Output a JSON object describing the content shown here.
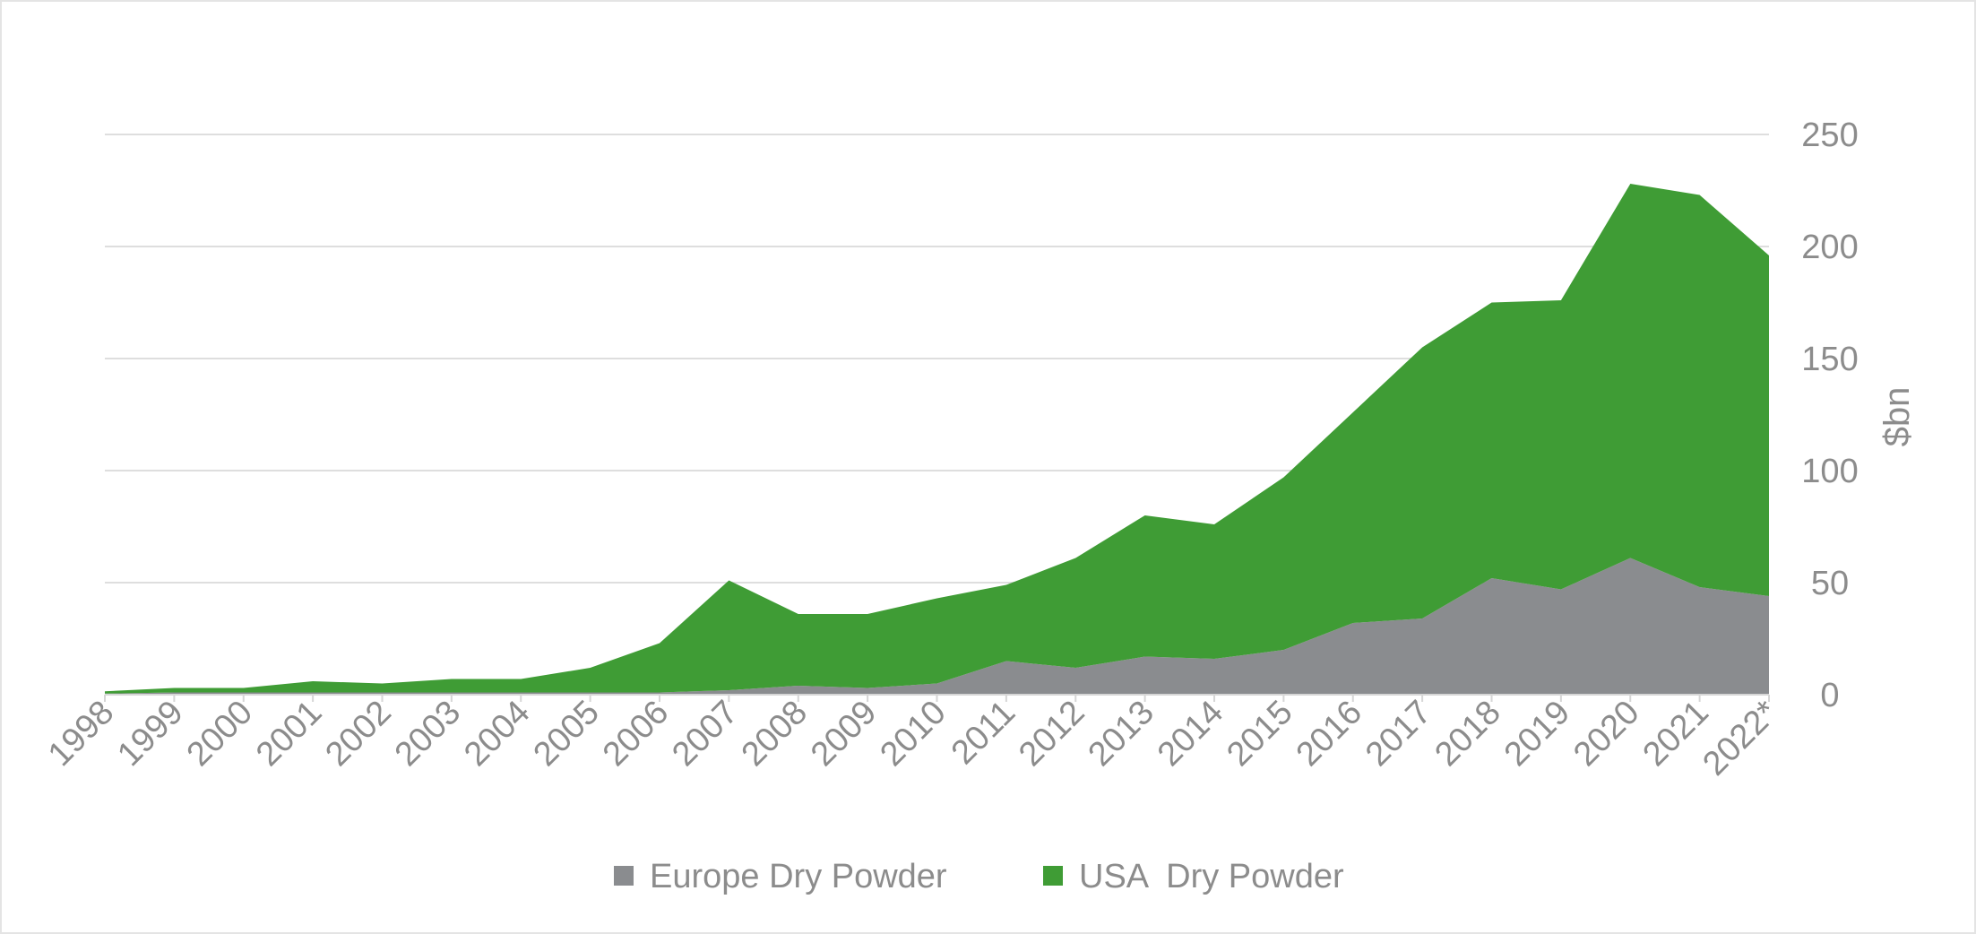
{
  "chart_data": {
    "type": "area",
    "stacked": true,
    "x": [
      "1998",
      "1999",
      "2000",
      "2001",
      "2002",
      "2003",
      "2004",
      "2005",
      "2006",
      "2007",
      "2008",
      "2009",
      "2010",
      "2011",
      "2012",
      "2013",
      "2014",
      "2015",
      "2016",
      "2017",
      "2018",
      "2019",
      "2020",
      "2021",
      "2022*"
    ],
    "series": [
      {
        "name": "Europe Dry Powder",
        "color": "#8a8c8f",
        "values": [
          0.5,
          1,
          1,
          1,
          1,
          1,
          1,
          1,
          1,
          2,
          4,
          3,
          5,
          15,
          12,
          17,
          16,
          20,
          32,
          34,
          52,
          47,
          61,
          48,
          44
        ]
      },
      {
        "name": "USA  Dry Powder",
        "color": "#3f9c35",
        "values": [
          1,
          2,
          2,
          5,
          4,
          6,
          6,
          11,
          22,
          49,
          32,
          33,
          38,
          34,
          49,
          63,
          60,
          77,
          94,
          121,
          123,
          129,
          167,
          175,
          152
        ]
      }
    ],
    "y_axis": {
      "label": "$bn",
      "position": "right",
      "min": 0,
      "max": 250,
      "ticks": [
        0,
        50,
        100,
        150,
        200,
        250
      ]
    },
    "grid": true,
    "legend_position": "bottom-center"
  }
}
